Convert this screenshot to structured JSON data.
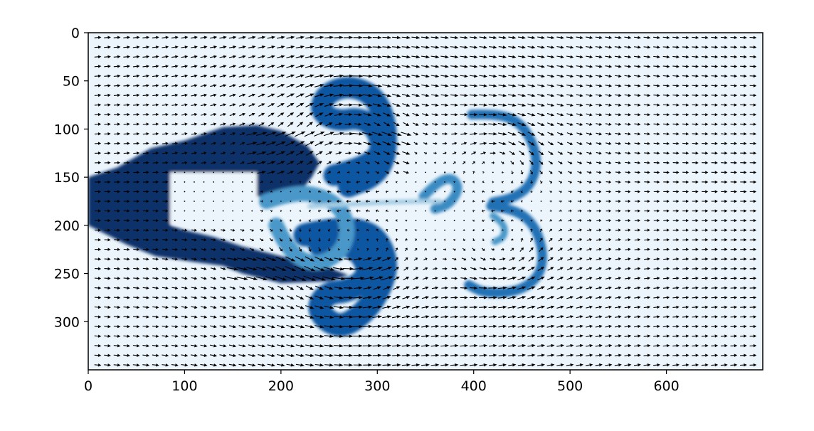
{
  "chart_data": {
    "type": "heatmap",
    "subtype": "image with quiver field overlay",
    "title": "",
    "xlabel": "",
    "ylabel": "",
    "xlim": [
      0,
      700
    ],
    "ylim": [
      350,
      0
    ],
    "y_axis_inverted": true,
    "x_ticks": [
      0,
      100,
      200,
      300,
      400,
      500,
      600
    ],
    "y_ticks": [
      0,
      50,
      100,
      150,
      200,
      250,
      300
    ],
    "colormap": "Blues",
    "colors": {
      "low": "#f0f6fd",
      "high": "#08306b",
      "arrow": "#000000",
      "frame": "#000000"
    },
    "background_value": 0.05,
    "features": [
      {
        "name": "inlet jet",
        "kind": "rect",
        "x": [
          0,
          85
        ],
        "y": [
          150,
          200
        ],
        "value": 1.0
      },
      {
        "name": "trailing blob",
        "kind": "polygon",
        "value": 1.0,
        "points": [
          [
            0,
            150
          ],
          [
            30,
            140
          ],
          [
            65,
            120
          ],
          [
            100,
            112
          ],
          [
            140,
            98
          ],
          [
            175,
            96
          ],
          [
            200,
            102
          ],
          [
            228,
            118
          ],
          [
            240,
            135
          ],
          [
            232,
            150
          ],
          [
            220,
            165
          ],
          [
            200,
            170
          ],
          [
            170,
            170
          ],
          [
            150,
            160
          ],
          [
            130,
            150
          ],
          [
            100,
            150
          ],
          [
            85,
            150
          ],
          [
            85,
            200
          ],
          [
            100,
            205
          ],
          [
            130,
            212
          ],
          [
            160,
            222
          ],
          [
            200,
            232
          ],
          [
            240,
            240
          ],
          [
            270,
            252
          ],
          [
            250,
            258
          ],
          [
            200,
            260
          ],
          [
            160,
            250
          ],
          [
            140,
            242
          ],
          [
            110,
            238
          ],
          [
            70,
            232
          ],
          [
            40,
            220
          ],
          [
            10,
            205
          ],
          [
            0,
            200
          ]
        ]
      },
      {
        "name": "empty cavity",
        "kind": "rect",
        "x": [
          85,
          175
        ],
        "y": [
          145,
          198
        ],
        "value": 0.05
      },
      {
        "name": "upper vortex arm",
        "kind": "path",
        "width": 22,
        "value": 0.85,
        "points": [
          [
            255,
            148
          ],
          [
            285,
            140
          ],
          [
            305,
            125
          ],
          [
            300,
            100
          ],
          [
            282,
            88
          ],
          [
            258,
            92
          ],
          [
            240,
            82
          ],
          [
            246,
            64
          ],
          [
            268,
            55
          ],
          [
            292,
            62
          ],
          [
            305,
            80
          ],
          [
            310,
            105
          ],
          [
            308,
            132
          ],
          [
            296,
            150
          ],
          [
            270,
            160
          ]
        ]
      },
      {
        "name": "lower vortex arm",
        "kind": "path",
        "width": 24,
        "value": 0.85,
        "points": [
          [
            225,
            210
          ],
          [
            255,
            203
          ],
          [
            290,
            206
          ],
          [
            305,
            222
          ],
          [
            310,
            245
          ],
          [
            300,
            272
          ],
          [
            285,
            292
          ],
          [
            265,
            305
          ],
          [
            248,
            300
          ],
          [
            238,
            285
          ],
          [
            248,
            270
          ],
          [
            272,
            268
          ],
          [
            292,
            252
          ],
          [
            285,
            230
          ],
          [
            265,
            218
          ],
          [
            240,
            220
          ]
        ]
      },
      {
        "name": "mid swirl",
        "kind": "path",
        "width": 16,
        "value": 0.6,
        "points": [
          [
            185,
            175
          ],
          [
            215,
            165
          ],
          [
            245,
            170
          ],
          [
            265,
            185
          ],
          [
            270,
            210
          ],
          [
            260,
            230
          ],
          [
            240,
            240
          ],
          [
            220,
            236
          ],
          [
            205,
            220
          ],
          [
            195,
            200
          ]
        ]
      },
      {
        "name": "upper vortex pair",
        "kind": "path",
        "width": 10,
        "value": 0.75,
        "points": [
          [
            398,
            85
          ],
          [
            425,
            84
          ],
          [
            448,
            93
          ],
          [
            462,
            115
          ],
          [
            466,
            138
          ],
          [
            458,
            160
          ],
          [
            440,
            172
          ],
          [
            420,
            176
          ]
        ]
      },
      {
        "name": "lower vortex pair",
        "kind": "path",
        "width": 10,
        "value": 0.75,
        "points": [
          [
            418,
            180
          ],
          [
            442,
            183
          ],
          [
            462,
            198
          ],
          [
            472,
            225
          ],
          [
            470,
            248
          ],
          [
            458,
            262
          ],
          [
            438,
            270
          ],
          [
            410,
            270
          ],
          [
            395,
            262
          ]
        ]
      },
      {
        "name": "central nub",
        "kind": "path",
        "width": 10,
        "value": 0.65,
        "points": [
          [
            348,
            170
          ],
          [
            362,
            155
          ],
          [
            378,
            150
          ],
          [
            385,
            162
          ],
          [
            375,
            178
          ],
          [
            360,
            183
          ]
        ]
      },
      {
        "name": "wake filament",
        "kind": "path",
        "width": 5,
        "value": 0.35,
        "points": [
          [
            230,
            180
          ],
          [
            270,
            178
          ],
          [
            310,
            176
          ],
          [
            345,
            175
          ],
          [
            365,
            175
          ]
        ]
      },
      {
        "name": "small curl",
        "kind": "path",
        "width": 7,
        "value": 0.6,
        "points": [
          [
            420,
            190
          ],
          [
            432,
            198
          ],
          [
            432,
            212
          ],
          [
            422,
            217
          ]
        ]
      }
    ],
    "quiver": {
      "spacing": 10,
      "uniform_flow": [
        1,
        0
      ],
      "vortices": [
        {
          "x": 270,
          "y": 112,
          "strength": 18,
          "radius": 45
        },
        {
          "x": 270,
          "y": 235,
          "strength": -18,
          "radius": 45
        },
        {
          "x": 425,
          "y": 135,
          "strength": 10,
          "radius": 30
        },
        {
          "x": 430,
          "y": 225,
          "strength": -10,
          "radius": 30
        }
      ],
      "jets": [
        {
          "x": [
            170,
            330
          ],
          "y": [
            105,
            150
          ],
          "u": 1.8
        },
        {
          "x": [
            150,
            310
          ],
          "y": [
            235,
            262
          ],
          "u": 1.8
        }
      ],
      "calm_region": {
        "x": [
          85,
          175
        ],
        "y": [
          145,
          198
        ]
      }
    }
  }
}
